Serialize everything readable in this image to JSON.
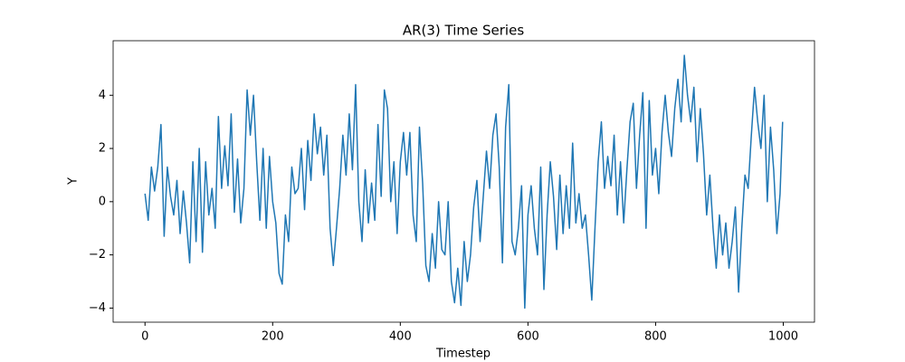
{
  "chart_data": {
    "type": "line",
    "title": "AR(3) Time Series",
    "x_label": "Timestep",
    "y_label": "Y",
    "x": [
      0,
      5,
      10,
      15,
      20,
      25,
      30,
      35,
      40,
      45,
      50,
      55,
      60,
      65,
      70,
      75,
      80,
      85,
      90,
      95,
      100,
      105,
      110,
      115,
      120,
      125,
      130,
      135,
      140,
      145,
      150,
      155,
      160,
      165,
      170,
      175,
      180,
      185,
      190,
      195,
      200,
      205,
      210,
      215,
      220,
      225,
      230,
      235,
      240,
      245,
      250,
      255,
      260,
      265,
      270,
      275,
      280,
      285,
      290,
      295,
      300,
      305,
      310,
      315,
      320,
      325,
      330,
      335,
      340,
      345,
      350,
      355,
      360,
      365,
      370,
      375,
      380,
      385,
      390,
      395,
      400,
      405,
      410,
      415,
      420,
      425,
      430,
      435,
      440,
      445,
      450,
      455,
      460,
      465,
      470,
      475,
      480,
      485,
      490,
      495,
      500,
      505,
      510,
      515,
      520,
      525,
      530,
      535,
      540,
      545,
      550,
      555,
      560,
      565,
      570,
      575,
      580,
      585,
      590,
      595,
      600,
      605,
      610,
      615,
      620,
      625,
      630,
      635,
      640,
      645,
      650,
      655,
      660,
      665,
      670,
      675,
      680,
      685,
      690,
      695,
      700,
      705,
      710,
      715,
      720,
      725,
      730,
      735,
      740,
      745,
      750,
      755,
      760,
      765,
      770,
      775,
      780,
      785,
      790,
      795,
      800,
      805,
      810,
      815,
      820,
      825,
      830,
      835,
      840,
      845,
      850,
      855,
      860,
      865,
      870,
      875,
      880,
      885,
      890,
      895,
      900,
      905,
      910,
      915,
      920,
      925,
      930,
      935,
      940,
      945,
      950,
      955,
      960,
      965,
      970,
      975,
      980,
      985,
      990,
      995,
      999
    ],
    "series": [
      {
        "color": "#1f77b4",
        "values": [
          0.3,
          -0.7,
          1.3,
          0.4,
          1.3,
          2.9,
          -1.3,
          1.3,
          0.2,
          -0.5,
          0.8,
          -1.2,
          0.4,
          -0.8,
          -2.3,
          1.5,
          -1.5,
          2.0,
          -1.9,
          1.5,
          -0.5,
          0.5,
          -1.0,
          3.2,
          0.5,
          2.1,
          0.6,
          3.3,
          -0.4,
          1.6,
          -0.8,
          0.5,
          4.2,
          2.5,
          4.0,
          1.5,
          -0.7,
          2.0,
          -1.0,
          1.7,
          0.0,
          -0.8,
          -2.7,
          -3.1,
          -0.5,
          -1.5,
          1.3,
          0.3,
          0.5,
          2.0,
          -0.3,
          2.3,
          0.8,
          3.3,
          1.8,
          2.8,
          1.0,
          2.5,
          -1.0,
          -2.4,
          -1.0,
          0.5,
          2.5,
          1.0,
          3.3,
          1.2,
          4.4,
          0.0,
          -1.5,
          1.2,
          -0.8,
          0.7,
          -0.7,
          2.9,
          0.2,
          4.2,
          3.5,
          0.0,
          1.5,
          -1.2,
          1.5,
          2.6,
          1.0,
          2.6,
          -0.5,
          -1.5,
          2.8,
          0.7,
          -2.4,
          -3.0,
          -1.2,
          -2.5,
          0.0,
          -1.8,
          -2.0,
          0.0,
          -3.0,
          -3.8,
          -2.5,
          -3.9,
          -1.5,
          -3.0,
          -2.0,
          -0.2,
          0.8,
          -1.5,
          0.2,
          1.9,
          0.5,
          2.5,
          3.3,
          1.3,
          -2.3,
          2.8,
          4.4,
          -1.5,
          -2.0,
          -1.0,
          0.6,
          -4.0,
          -0.5,
          0.6,
          -1.0,
          -2.0,
          1.3,
          -3.3,
          -0.5,
          1.5,
          0.2,
          -1.8,
          1.0,
          -1.2,
          0.6,
          -1.0,
          2.2,
          -0.8,
          0.3,
          -1.0,
          -0.5,
          -2.0,
          -3.7,
          -1.0,
          1.5,
          3.0,
          0.5,
          1.7,
          0.6,
          2.5,
          -0.5,
          1.5,
          -0.8,
          1.2,
          3.0,
          3.7,
          0.5,
          2.5,
          4.1,
          -1.0,
          3.8,
          1.0,
          2.0,
          0.3,
          2.6,
          4.0,
          2.6,
          1.7,
          3.5,
          4.6,
          3.0,
          5.5,
          4.0,
          3.0,
          4.3,
          1.5,
          3.5,
          1.8,
          -0.5,
          1.0,
          -1.0,
          -2.5,
          -0.5,
          -2.0,
          -0.8,
          -2.5,
          -1.5,
          -0.2,
          -3.4,
          -1.0,
          1.0,
          0.5,
          2.5,
          4.3,
          3.0,
          2.0,
          4.0,
          0.0,
          2.8,
          1.2,
          -1.2,
          0.3,
          3.0
        ]
      }
    ],
    "xlim": [
      -49.95,
      1048.95
    ],
    "ylim": [
      -4.53,
      6.05
    ],
    "xticks": [
      0,
      200,
      400,
      600,
      800,
      1000
    ],
    "yticks": [
      {
        "value": -4,
        "label": "−4"
      },
      {
        "value": -2,
        "label": "−2"
      },
      0,
      2,
      4
    ],
    "grid": false
  }
}
